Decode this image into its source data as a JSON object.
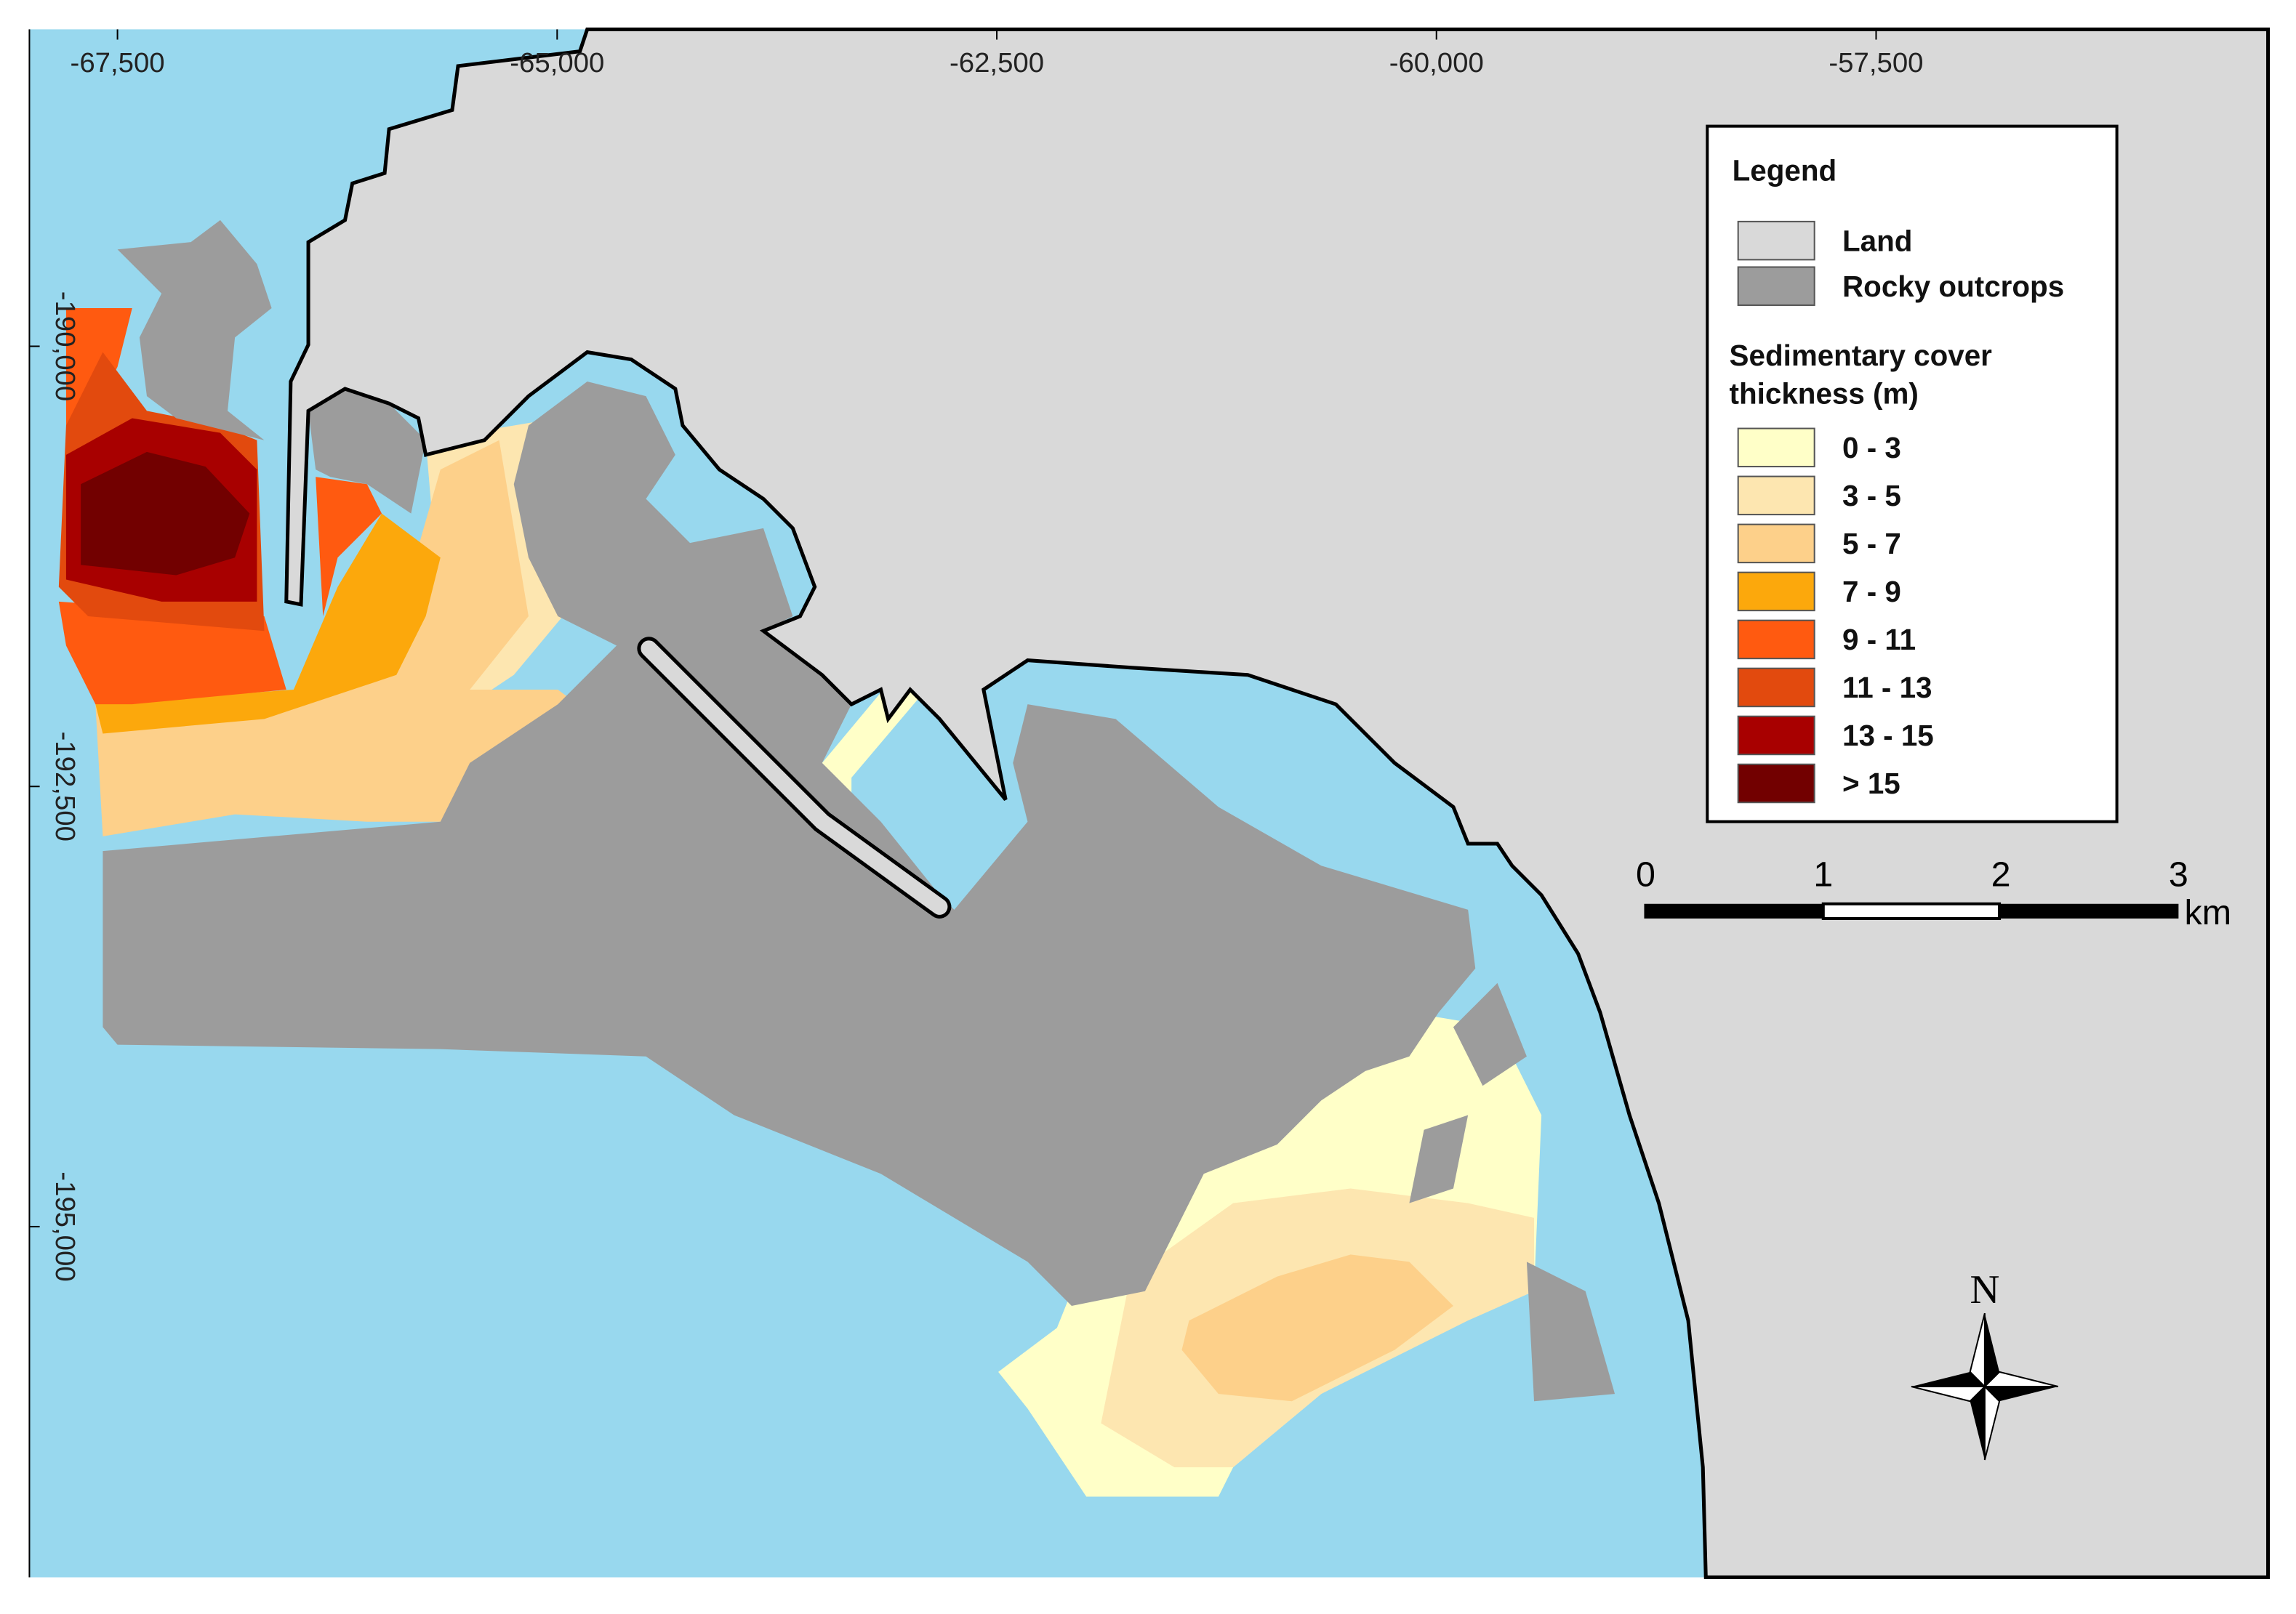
{
  "map": {
    "x_labels": [
      "-67,500",
      "-65,000",
      "-62,500",
      "-60,000",
      "-57,500"
    ],
    "y_labels": [
      "-190,000",
      "-192,500",
      "-195,000"
    ],
    "legend": {
      "title": "Legend",
      "base": [
        {
          "label": "Land",
          "color": "#d9d9d9"
        },
        {
          "label": "Rocky outcrops",
          "color": "#9c9c9c"
        }
      ],
      "heading": [
        "Sedimentary cover",
        "thickness (m)"
      ],
      "classes": [
        {
          "label": "0 - 3",
          "color": "#ffffc8"
        },
        {
          "label": "3 - 5",
          "color": "#fde6b0"
        },
        {
          "label": "5 - 7",
          "color": "#fdd08a"
        },
        {
          "label": "7 - 9",
          "color": "#fca80c"
        },
        {
          "label": "9 - 11",
          "color": "#ff5a10"
        },
        {
          "label": "11 - 13",
          "color": "#e24a0e"
        },
        {
          "label": "13 - 15",
          "color": "#a80000"
        },
        {
          "label": "> 15",
          "color": "#720000"
        }
      ]
    },
    "scale_bar": {
      "labels": [
        "0",
        "1",
        "2",
        "3"
      ],
      "unit": "km"
    },
    "north": "N"
  }
}
